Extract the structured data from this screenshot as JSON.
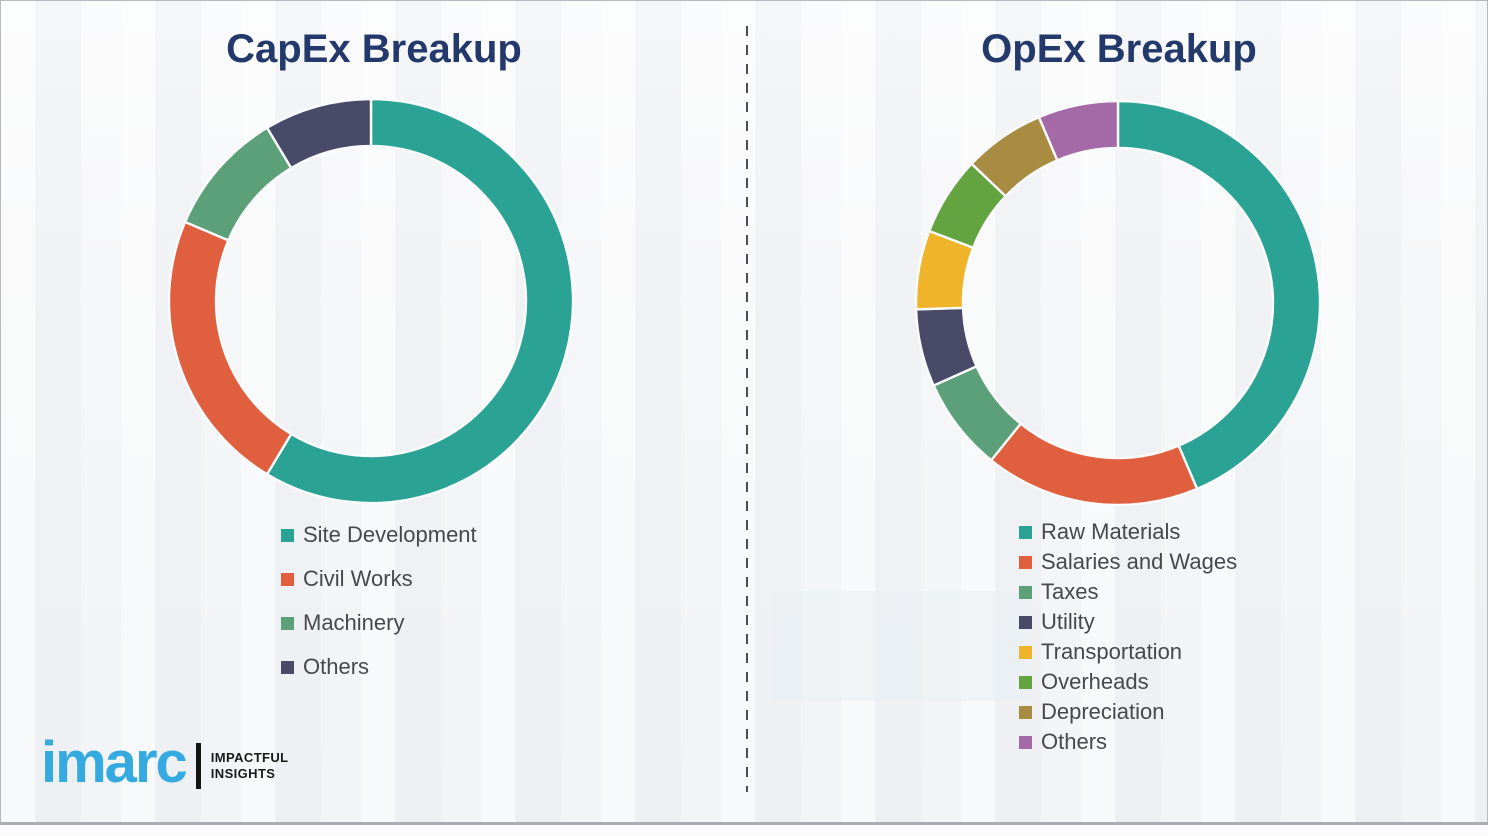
{
  "page": {
    "background_color": "#f2f3f5",
    "title_color": "#24396b"
  },
  "logo": {
    "brand": "imarc",
    "tagline_line1": "IMPACTFUL",
    "tagline_line2": "INSIGHTS",
    "brand_color": "#35aae1"
  },
  "chart_data": [
    {
      "type": "pie",
      "variant": "donut",
      "title": "CapEx Breakup",
      "legend_position": "below-left",
      "categories": [
        "Site Development",
        "Civil Works",
        "Machinery",
        "Others"
      ],
      "values": [
        58.6,
        22.8,
        10.0,
        8.6
      ],
      "colors": [
        "#2aa294",
        "#e05f3e",
        "#5ca07a",
        "#484a68"
      ],
      "start_angle_deg": 0,
      "direction": "clockwise"
    },
    {
      "type": "pie",
      "variant": "donut",
      "title": "OpEx Breakup",
      "legend_position": "below-left",
      "categories": [
        "Raw Materials",
        "Salaries and Wages",
        "Taxes",
        "Utility",
        "Transportation",
        "Overheads",
        "Depreciation",
        "Others"
      ],
      "values": [
        43.6,
        17.2,
        7.5,
        6.2,
        6.3,
        6.3,
        6.5,
        6.4
      ],
      "colors": [
        "#2aa294",
        "#e05f3e",
        "#5ca07a",
        "#484a68",
        "#f0b42a",
        "#64a440",
        "#a78c42",
        "#a46aa7"
      ],
      "start_angle_deg": 0,
      "direction": "clockwise"
    }
  ]
}
